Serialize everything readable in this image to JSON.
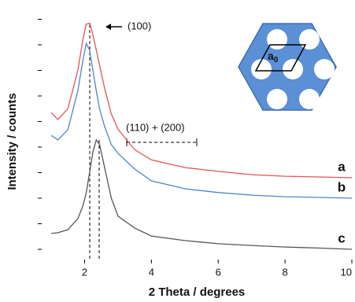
{
  "chart_data": {
    "type": "line",
    "x_label": "2 Theta / degrees",
    "y_label": "Intensity / counts",
    "x": [
      1,
      1.2,
      1.5,
      1.8,
      1.95,
      2.05,
      2.15,
      2.25,
      2.35,
      2.45,
      2.6,
      2.8,
      3,
      3.5,
      4,
      5,
      6,
      7,
      8,
      9,
      10
    ],
    "series": [
      {
        "name": "a",
        "color": "#e05555",
        "values": [
          53.5,
          50.8,
          55,
          70,
          82,
          88,
          88.5,
          84,
          78,
          72,
          63,
          53,
          47,
          39,
          35,
          32,
          30.5,
          29.2,
          28.6,
          28.3,
          28
        ]
      },
      {
        "name": "b",
        "color": "#4a86c8",
        "values": [
          44.6,
          42.8,
          46.8,
          62,
          74,
          80.5,
          78,
          70,
          62,
          55,
          48,
          41,
          37.5,
          31.4,
          26.8,
          23.7,
          22.2,
          21.2,
          20.6,
          20.3,
          20
        ]
      },
      {
        "name": "c",
        "color": "#555555",
        "values": [
          6.2,
          6.5,
          7.7,
          12,
          17,
          22,
          30,
          38,
          42.8,
          41,
          32,
          20,
          13,
          8.3,
          5.2,
          3.4,
          2.2,
          1.5,
          0.9,
          0.5,
          0
        ]
      }
    ],
    "xlim": [
      0.6,
      10
    ],
    "ylim": [
      -4,
      96
    ],
    "xticks": [
      2,
      4,
      6,
      8,
      10
    ],
    "yticks": [
      0,
      10,
      20,
      30,
      40,
      50,
      60,
      70,
      80,
      90
    ],
    "annotations": {
      "peak_100": "(100)",
      "peaks_110_200": "(110) + (200)",
      "inset_label": "a",
      "inset_subscript": "0"
    }
  }
}
